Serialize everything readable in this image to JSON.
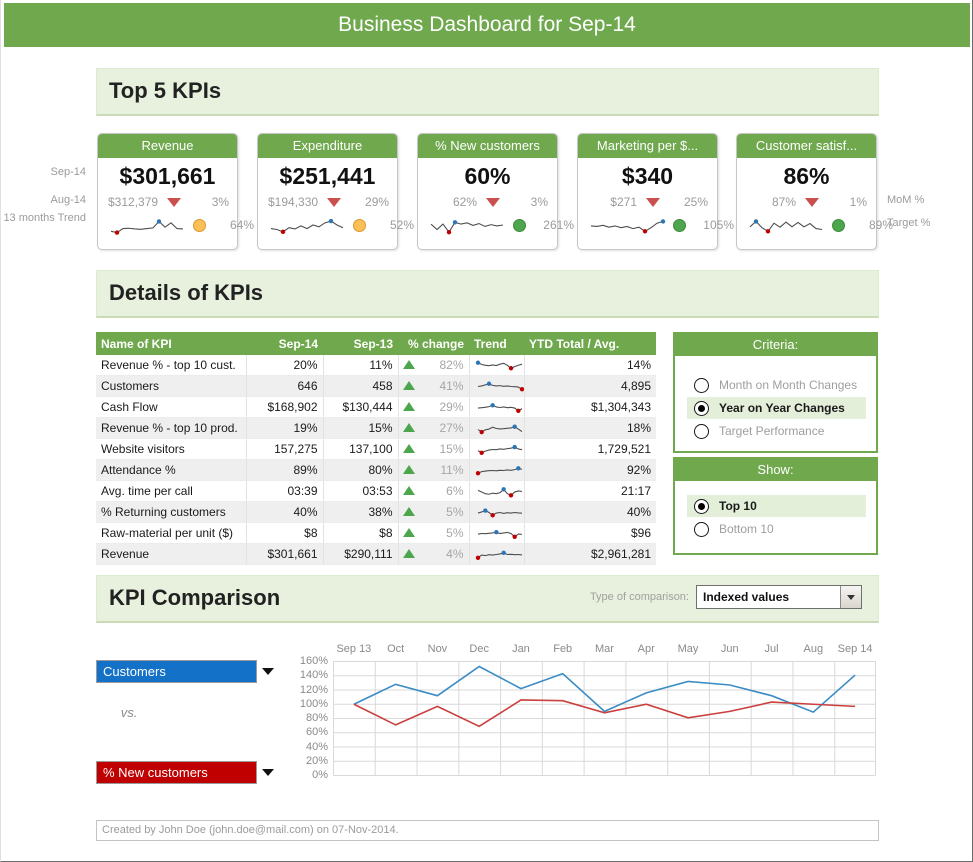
{
  "banner": {
    "title": "Business Dashboard for Sep-14"
  },
  "sections": {
    "top_kpis": "Top 5 KPIs",
    "details": "Details of KPIs",
    "comparison": "KPI Comparison"
  },
  "side_labels": {
    "left": [
      "Sep-14",
      "Aug-14",
      "13 months Trend"
    ],
    "right": [
      "MoM %",
      "Target %"
    ]
  },
  "icons": {
    "mom_indicator": "triangle-down-red",
    "change_indicator": "triangle-up-green",
    "target_indicator": "status-circle",
    "dropdown": "chevron-down"
  },
  "kpi_cards": [
    {
      "title": "Revenue",
      "value": "$301,661",
      "prev": "$312,379",
      "mom": "3%",
      "mom_dir": "down",
      "target": "64%",
      "target_status": "amber",
      "spark": [
        15,
        8,
        30,
        32,
        28,
        26,
        30,
        34,
        70,
        38,
        62,
        30,
        28
      ]
    },
    {
      "title": "Expenditure",
      "value": "$251,441",
      "prev": "$194,330",
      "mom": "29%",
      "mom_dir": "down",
      "target": "52%",
      "target_status": "amber",
      "spark": [
        30,
        25,
        12,
        35,
        28,
        45,
        30,
        50,
        40,
        62,
        72,
        50,
        35
      ]
    },
    {
      "title": "% New customers",
      "value": "60%",
      "prev": "62%",
      "mom": "3%",
      "mom_dir": "down",
      "target": "261%",
      "target_status": "green",
      "spark": [
        55,
        25,
        55,
        10,
        65,
        55,
        62,
        48,
        58,
        42,
        52,
        45,
        50
      ]
    },
    {
      "title": "Marketing per $...",
      "value": "$340",
      "prev": "$271",
      "mom": "25%",
      "mom_dir": "down",
      "target": "105%",
      "target_status": "green",
      "spark": [
        45,
        42,
        48,
        38,
        45,
        35,
        42,
        30,
        38,
        15,
        35,
        60,
        70
      ]
    },
    {
      "title": "Customer satisf...",
      "value": "86%",
      "prev": "87%",
      "mom": "1%",
      "mom_dir": "down",
      "target": "89%",
      "target_status": "green",
      "spark": [
        40,
        70,
        35,
        15,
        60,
        38,
        66,
        40,
        64,
        40,
        58,
        30,
        25
      ]
    }
  ],
  "kpi_table": {
    "headers": [
      "Name of KPI",
      "Sep-14",
      "Sep-13",
      "% change",
      "Trend",
      "YTD Total / Avg."
    ],
    "rows": [
      {
        "name": "Revenue % - top 10 cust.",
        "sep14": "20%",
        "sep13": "11%",
        "change": "82%",
        "ytd": "14%",
        "spark": [
          75,
          60,
          52,
          48,
          55,
          50,
          62,
          70,
          52,
          25,
          40,
          52,
          62
        ]
      },
      {
        "name": "Customers",
        "sep14": "646",
        "sep13": "458",
        "change": "41%",
        "ytd": "4,895",
        "spark": [
          50,
          55,
          65,
          75,
          60,
          55,
          58,
          52,
          55,
          50,
          48,
          45,
          25
        ]
      },
      {
        "name": "Cash Flow",
        "sep14": "$168,902",
        "sep13": "$130,444",
        "change": "29%",
        "ytd": "$1,304,343",
        "spark": [
          45,
          48,
          52,
          58,
          70,
          55,
          50,
          55,
          48,
          52,
          45,
          20,
          40
        ]
      },
      {
        "name": "Revenue % - top 10 prod.",
        "sep14": "19%",
        "sep13": "15%",
        "change": "27%",
        "ytd": "18%",
        "spark": [
          40,
          18,
          38,
          45,
          62,
          50,
          46,
          48,
          52,
          55,
          66,
          45,
          22
        ]
      },
      {
        "name": "Website visitors",
        "sep14": "157,275",
        "sep13": "137,100",
        "change": "15%",
        "ytd": "1,729,521",
        "spark": [
          40,
          20,
          35,
          45,
          50,
          48,
          55,
          52,
          58,
          62,
          72,
          55,
          48
        ]
      },
      {
        "name": "Attendance %",
        "sep14": "89%",
        "sep13": "80%",
        "change": "11%",
        "ytd": "92%",
        "spark": [
          25,
          40,
          45,
          48,
          50,
          47,
          52,
          50,
          55,
          52,
          58,
          70,
          60
        ]
      },
      {
        "name": "Avg. time per call",
        "sep14": "03:39",
        "sep13": "03:53",
        "change": "6%",
        "ytd": "21:17",
        "spark": [
          60,
          45,
          30,
          25,
          35,
          30,
          40,
          70,
          30,
          15,
          45,
          55,
          50
        ]
      },
      {
        "name": "% Returning customers",
        "sep14": "40%",
        "sep13": "38%",
        "change": "5%",
        "ytd": "40%",
        "spark": [
          45,
          55,
          68,
          50,
          25,
          45,
          50,
          42,
          48,
          45,
          50,
          46,
          44
        ]
      },
      {
        "name": "Raw-material per unit ($)",
        "sep14": "$8",
        "sep13": "$8",
        "change": "5%",
        "ytd": "$96",
        "spark": [
          45,
          50,
          48,
          52,
          55,
          62,
          50,
          55,
          60,
          50,
          20,
          45,
          42
        ]
      },
      {
        "name": "Revenue",
        "sep14": "$301,661",
        "sep13": "$290,111",
        "change": "4%",
        "ytd": "$2,961,281",
        "spark": [
          20,
          45,
          40,
          48,
          45,
          50,
          55,
          65,
          50,
          52,
          48,
          50,
          46
        ]
      }
    ]
  },
  "criteria": {
    "title": "Criteria:",
    "options": [
      {
        "label": "Month on Month Changes",
        "selected": false
      },
      {
        "label": "Year on Year Changes",
        "selected": true
      },
      {
        "label": "Target Performance",
        "selected": false
      }
    ]
  },
  "show": {
    "title": "Show:",
    "options": [
      {
        "label": "Top 10",
        "selected": true
      },
      {
        "label": "Bottom 10",
        "selected": false
      }
    ]
  },
  "comparison": {
    "type_label": "Type of comparison:",
    "type_value": "Indexed values",
    "series1_label": "Customers",
    "vs_label": "vs.",
    "series2_label": "% New customers"
  },
  "chart_data": {
    "type": "line",
    "x": [
      "Sep 13",
      "Oct",
      "Nov",
      "Dec",
      "Jan",
      "Feb",
      "Mar",
      "Apr",
      "May",
      "Jun",
      "Jul",
      "Aug",
      "Sep 14"
    ],
    "series": [
      {
        "name": "Customers",
        "color": "#3c8dc5",
        "values": [
          100,
          128,
          112,
          153,
          122,
          143,
          90,
          116,
          132,
          127,
          112,
          89,
          141
        ]
      },
      {
        "name": "% New customers",
        "color": "#c9403e",
        "values": [
          100,
          71,
          97,
          69,
          106,
          105,
          88,
          100,
          81,
          90,
          103,
          100,
          97
        ]
      }
    ],
    "ylim": [
      0,
      160
    ],
    "ytick_step": 20,
    "ytick_labels": [
      "160%",
      "140%",
      "120%",
      "100%",
      "80%",
      "60%",
      "40%",
      "20%",
      "0%"
    ],
    "grid": true,
    "legend": "none"
  },
  "footer": {
    "text": "Created by John Doe (john.doe@mail.com) on 07-Nov-2014."
  },
  "colors": {
    "header_green": "#6fa84d",
    "section_light_green": "#e7f1dd",
    "selected_row_green": "#e4efda",
    "amber_status": "#fbbf57",
    "green_status": "#4ca64c",
    "down_triangle_red": "#c9504c",
    "up_triangle_green": "#4ca64c",
    "series1_blue": "#1471c8",
    "series2_red": "#c00000"
  }
}
